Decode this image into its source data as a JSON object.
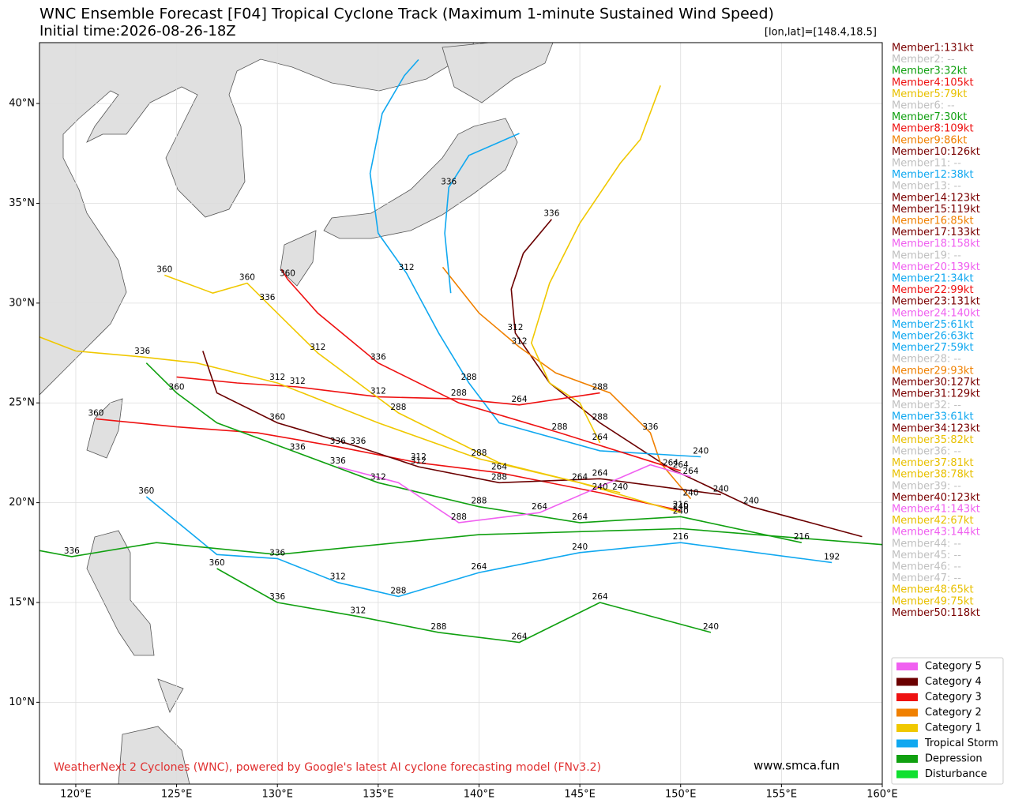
{
  "title": "WNC Ensemble Forecast [F04] Tropical Cyclone Track (Maximum 1-minute Sustained Wind Speed)",
  "subtitle": "Initial time:2026-08-26-18Z",
  "position_label": "[lon,lat]=[148.4,18.5]",
  "footer": "WeatherNext 2 Cyclones (WNC), powered by Google's latest AI cyclone forecasting model (FNv3.2)",
  "site": "www.smca.fun",
  "map": {
    "xlim": [
      118.2,
      160
    ],
    "ylim": [
      5.9,
      43.05
    ],
    "xticks": [
      {
        "value": 120,
        "label": "120°E"
      },
      {
        "value": 125,
        "label": "125°E"
      },
      {
        "value": 130,
        "label": "130°E"
      },
      {
        "value": 135,
        "label": "135°E"
      },
      {
        "value": 140,
        "label": "140°E"
      },
      {
        "value": 145,
        "label": "145°E"
      },
      {
        "value": 150,
        "label": "150°E"
      },
      {
        "value": 155,
        "label": "155°E"
      },
      {
        "value": 160,
        "label": "160°E"
      }
    ],
    "yticks": [
      {
        "value": 10,
        "label": "10°N"
      },
      {
        "value": 15,
        "label": "15°N"
      },
      {
        "value": 20,
        "label": "20°N"
      },
      {
        "value": 25,
        "label": "25°N"
      },
      {
        "value": 30,
        "label": "30°N"
      },
      {
        "value": 35,
        "label": "35°N"
      },
      {
        "value": 40,
        "label": "40°N"
      }
    ],
    "grid": true
  },
  "tracks": [
    {
      "color": "#6b0000",
      "lon": [
        159,
        153.5,
        149.5,
        146,
        143.5,
        141.8,
        141.6,
        142.2,
        143.6
      ],
      "lat": [
        18.3,
        19.8,
        21.7,
        24,
        26,
        28.5,
        30.7,
        32.5,
        34.2
      ],
      "hours": [
        null,
        240,
        264,
        288,
        null,
        312,
        null,
        null,
        336
      ]
    },
    {
      "color": "#f08000",
      "lon": [
        150.5,
        149,
        148.5,
        146.5,
        143.8,
        142,
        140,
        138.2
      ],
      "lat": [
        20.2,
        22,
        23.5,
        25.5,
        26.5,
        27.8,
        29.5,
        31.8
      ],
      "hours": [
        240,
        null,
        336,
        null,
        null,
        312,
        null,
        null
      ]
    },
    {
      "color": "#f0c800",
      "lon": [
        146,
        145,
        143.5,
        142.6,
        143.5,
        145,
        147,
        148,
        149
      ],
      "lat": [
        23,
        25,
        26,
        28,
        31,
        34,
        37,
        38.2,
        40.9
      ],
      "hours": [
        264,
        null,
        null,
        null,
        null,
        null,
        null,
        null,
        null
      ]
    },
    {
      "color": "#10a8f0",
      "lon": [
        151,
        146,
        141,
        139.5,
        138,
        136.4,
        135,
        134.6,
        135.2,
        136.3,
        137
      ],
      "lat": [
        22.3,
        22.6,
        24,
        26,
        28.5,
        31.5,
        33.5,
        36.5,
        39.5,
        41.4,
        42.2
      ],
      "hours": [
        240,
        null,
        null,
        288,
        null,
        312,
        null,
        null,
        null,
        null,
        null
      ]
    },
    {
      "color": "#ee1111",
      "lon": [
        146,
        142,
        139,
        135,
        131,
        128,
        125
      ],
      "lat": [
        25.5,
        24.9,
        25.2,
        25.3,
        25.8,
        26,
        26.3
      ],
      "hours": [
        288,
        264,
        288,
        312,
        312,
        null,
        null
      ]
    },
    {
      "color": "#ee1111",
      "lon": [
        150,
        146,
        141,
        137,
        133,
        129,
        125,
        121
      ],
      "lat": [
        19.6,
        20.5,
        21.5,
        22,
        22.8,
        23.5,
        23.8,
        24.2
      ],
      "hours": [
        216,
        240,
        264,
        312,
        336,
        null,
        null,
        360
      ]
    },
    {
      "color": "#f0c800",
      "lon": [
        150,
        145,
        140,
        135,
        130,
        126,
        123.3,
        120,
        118.2
      ],
      "lat": [
        19.5,
        21,
        22.2,
        24,
        26,
        27,
        27.3,
        27.6,
        28.3
      ],
      "hours": [
        240,
        264,
        288,
        null,
        312,
        null,
        336,
        null,
        null
      ]
    },
    {
      "color": "#10a010",
      "lon": [
        156,
        150,
        145,
        140,
        135,
        131,
        127,
        125,
        123.5
      ],
      "lat": [
        18,
        19.3,
        19,
        19.8,
        21,
        22.5,
        24,
        25.5,
        27
      ],
      "hours": [
        216,
        240,
        264,
        288,
        312,
        336,
        null,
        360,
        null
      ]
    },
    {
      "color": "#10a8f0",
      "lon": [
        157.5,
        150,
        145,
        140,
        136,
        133,
        130,
        127,
        123.5
      ],
      "lat": [
        17,
        18,
        17.5,
        16.5,
        15.3,
        16,
        17.2,
        17.4,
        20.3
      ],
      "hours": [
        192,
        216,
        240,
        264,
        288,
        312,
        336,
        null,
        360
      ]
    },
    {
      "color": "#6b0000",
      "lon": [
        152,
        146,
        141,
        137,
        134,
        130,
        127,
        126.3
      ],
      "lat": [
        20.4,
        21.2,
        21,
        21.8,
        22.8,
        24,
        25.5,
        27.6
      ],
      "hours": [
        240,
        264,
        288,
        312,
        336,
        360,
        null,
        null
      ]
    },
    {
      "color": "#f0c800",
      "lon": [
        147,
        141,
        136,
        132,
        129.5,
        128.5,
        126.8,
        124.4
      ],
      "lat": [
        20.5,
        22,
        24.5,
        27.5,
        30,
        31,
        30.5,
        31.4
      ],
      "hours": [
        240,
        null,
        288,
        312,
        336,
        360,
        null,
        360
      ]
    },
    {
      "color": "#ee1111",
      "lon": [
        150,
        144,
        139,
        135,
        132,
        130.5,
        130.2
      ],
      "lat": [
        21.6,
        23.5,
        25,
        27,
        29.5,
        31.2,
        31.7
      ],
      "hours": [
        264,
        288,
        null,
        336,
        null,
        360,
        null
      ]
    },
    {
      "color": "#10a010",
      "lon": [
        151.5,
        146,
        142,
        138,
        134,
        130,
        127
      ],
      "lat": [
        13.5,
        15,
        13,
        13.5,
        14.3,
        15,
        16.7
      ],
      "hours": [
        240,
        264,
        264,
        288,
        312,
        336,
        360
      ]
    },
    {
      "color": "#f060f0",
      "lon": [
        150.5,
        148.5,
        143,
        139,
        136,
        133
      ],
      "lat": [
        21.3,
        21.9,
        19.5,
        19,
        21,
        21.8
      ],
      "hours": [
        264,
        null,
        264,
        288,
        null,
        336
      ]
    },
    {
      "color": "#10a010",
      "lon": [
        160,
        150,
        140,
        130,
        124,
        119.8,
        118.2
      ],
      "lat": [
        17.9,
        18.7,
        18.4,
        17.4,
        18,
        17.3,
        17.6
      ],
      "hours": [
        null,
        null,
        null,
        null,
        null,
        336,
        null
      ]
    },
    {
      "color": "#10a8f0",
      "lon": [
        142,
        139.5,
        138.5,
        138.3,
        138.6
      ],
      "lat": [
        38.5,
        37.4,
        35.8,
        33.5,
        30.5
      ],
      "hours": [
        null,
        null,
        336,
        null,
        null
      ]
    }
  ],
  "members": [
    {
      "text": "Member1:131kt",
      "color": "#7a0000"
    },
    {
      "text": "Member2: --",
      "color": "#c0c0c0"
    },
    {
      "text": "Member3:32kt",
      "color": "#10a010"
    },
    {
      "text": "Member4:105kt",
      "color": "#ee1111"
    },
    {
      "text": "Member5:79kt",
      "color": "#e8c000"
    },
    {
      "text": "Member6: --",
      "color": "#c0c0c0"
    },
    {
      "text": "Member7:30kt",
      "color": "#10a010"
    },
    {
      "text": "Member8:109kt",
      "color": "#ee1111"
    },
    {
      "text": "Member9:86kt",
      "color": "#f08000"
    },
    {
      "text": "Member10:126kt",
      "color": "#7a0000"
    },
    {
      "text": "Member11: --",
      "color": "#c0c0c0"
    },
    {
      "text": "Member12:38kt",
      "color": "#10a8f0"
    },
    {
      "text": "Member13: --",
      "color": "#c0c0c0"
    },
    {
      "text": "Member14:123kt",
      "color": "#7a0000"
    },
    {
      "text": "Member15:119kt",
      "color": "#7a0000"
    },
    {
      "text": "Member16:85kt",
      "color": "#f08000"
    },
    {
      "text": "Member17:133kt",
      "color": "#7a0000"
    },
    {
      "text": "Member18:158kt",
      "color": "#f060f0"
    },
    {
      "text": "Member19: --",
      "color": "#c0c0c0"
    },
    {
      "text": "Member20:139kt",
      "color": "#f060f0"
    },
    {
      "text": "Member21:34kt",
      "color": "#10a8f0"
    },
    {
      "text": "Member22:99kt",
      "color": "#ee1111"
    },
    {
      "text": "Member23:131kt",
      "color": "#7a0000"
    },
    {
      "text": "Member24:140kt",
      "color": "#f060f0"
    },
    {
      "text": "Member25:61kt",
      "color": "#10a8f0"
    },
    {
      "text": "Member26:63kt",
      "color": "#10a8f0"
    },
    {
      "text": "Member27:59kt",
      "color": "#10a8f0"
    },
    {
      "text": "Member28: --",
      "color": "#c0c0c0"
    },
    {
      "text": "Member29:93kt",
      "color": "#f08000"
    },
    {
      "text": "Member30:127kt",
      "color": "#7a0000"
    },
    {
      "text": "Member31:129kt",
      "color": "#7a0000"
    },
    {
      "text": "Member32: --",
      "color": "#c0c0c0"
    },
    {
      "text": "Member33:61kt",
      "color": "#10a8f0"
    },
    {
      "text": "Member34:123kt",
      "color": "#7a0000"
    },
    {
      "text": "Member35:82kt",
      "color": "#e8c000"
    },
    {
      "text": "Member36: --",
      "color": "#c0c0c0"
    },
    {
      "text": "Member37:81kt",
      "color": "#e8c000"
    },
    {
      "text": "Member38:78kt",
      "color": "#e8c000"
    },
    {
      "text": "Member39: --",
      "color": "#c0c0c0"
    },
    {
      "text": "Member40:123kt",
      "color": "#7a0000"
    },
    {
      "text": "Member41:143kt",
      "color": "#f060f0"
    },
    {
      "text": "Member42:67kt",
      "color": "#e8c000"
    },
    {
      "text": "Member43:144kt",
      "color": "#f060f0"
    },
    {
      "text": "Member44: --",
      "color": "#c0c0c0"
    },
    {
      "text": "Member45: --",
      "color": "#c0c0c0"
    },
    {
      "text": "Member46: --",
      "color": "#c0c0c0"
    },
    {
      "text": "Member47: --",
      "color": "#c0c0c0"
    },
    {
      "text": "Member48:65kt",
      "color": "#e8c000"
    },
    {
      "text": "Member49:75kt",
      "color": "#e8c000"
    },
    {
      "text": "Member50:118kt",
      "color": "#7a0000"
    }
  ],
  "legend": [
    {
      "label": "Category 5",
      "color": "#f060f0"
    },
    {
      "label": "Category 4",
      "color": "#6b0000"
    },
    {
      "label": "Category 3",
      "color": "#ee1111"
    },
    {
      "label": "Category 2",
      "color": "#f08000"
    },
    {
      "label": "Category 1",
      "color": "#f0c800"
    },
    {
      "label": "Tropical Storm",
      "color": "#10a8f0"
    },
    {
      "label": "Depression",
      "color": "#10a010"
    },
    {
      "label": "Disturbance",
      "color": "#10e030"
    }
  ]
}
